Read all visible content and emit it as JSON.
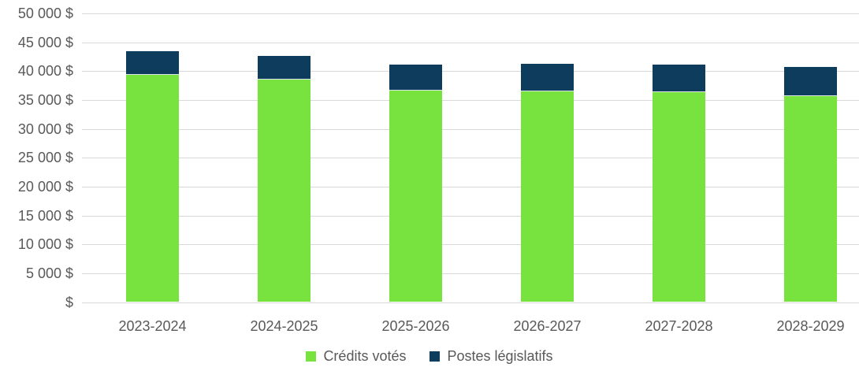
{
  "chart_data": {
    "type": "bar",
    "stacked": true,
    "title": "",
    "xlabel": "",
    "ylabel": "",
    "categories": [
      "2023-2024",
      "2024-2025",
      "2025-2026",
      "2026-2027",
      "2027-2028",
      "2028-2029"
    ],
    "series": [
      {
        "name": "Crédits votés",
        "color": "#78E23E",
        "values": [
          39300,
          38600,
          36600,
          36500,
          36300,
          35700
        ]
      },
      {
        "name": "Postes législatifs",
        "color": "#0D3C5C",
        "values": [
          4100,
          4100,
          4600,
          4800,
          4900,
          5000
        ]
      }
    ],
    "totals": [
      43400,
      42700,
      41200,
      41300,
      41200,
      40700
    ],
    "ylim": [
      0,
      50000
    ],
    "ytick_step": 5000,
    "ytick_labels": [
      "$",
      "5 000 $",
      "10 000 $",
      "15 000 $",
      "20 000 $",
      "25 000 $",
      "30 000 $",
      "35 000 $",
      "40 000 $",
      "45 000 $",
      "50 000 $"
    ],
    "grid": true,
    "legend_position": "bottom",
    "colors": {
      "axis_text": "#595959",
      "gridline": "#D9D9D9",
      "background": "#FFFFFF"
    }
  }
}
